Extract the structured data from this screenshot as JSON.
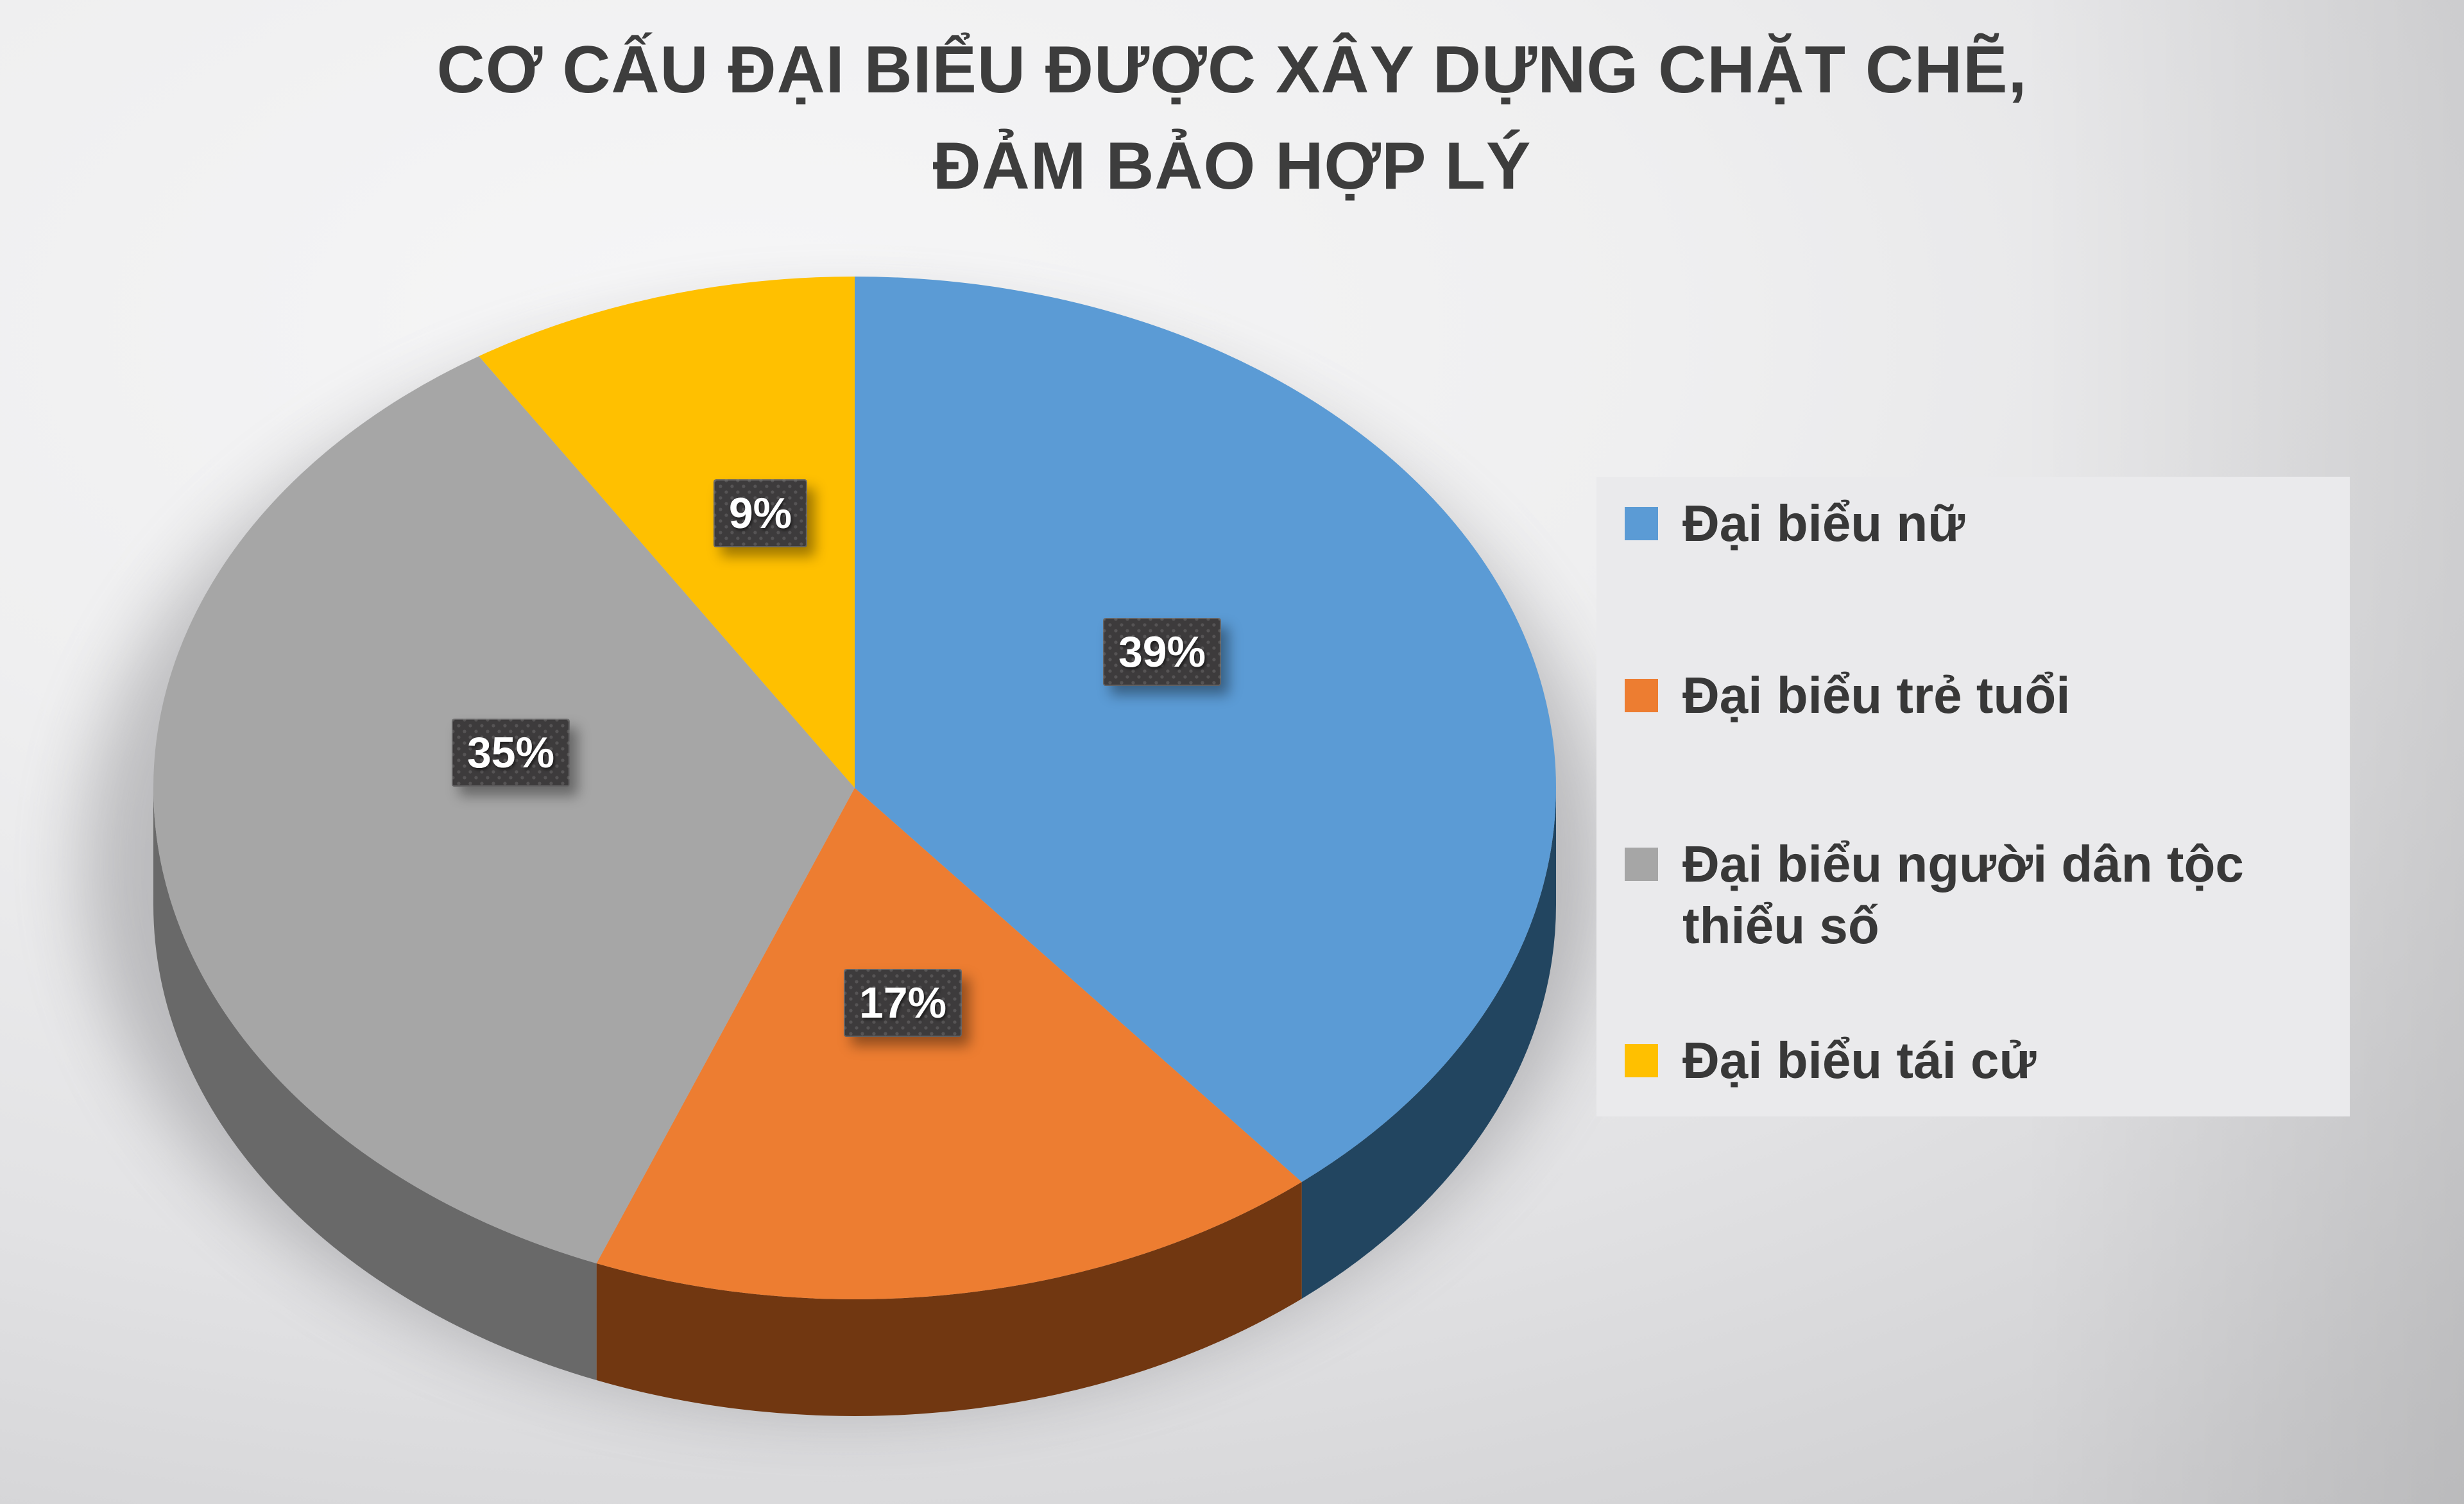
{
  "chart_data": {
    "type": "pie",
    "style": "3d-pie",
    "title": "CƠ CẤU ĐẠI BIỂU ĐƯỢC XÂY DỰNG CHẶT CHẼ, ĐẢM BẢO HỢP LÝ",
    "title_lines": [
      "CƠ CẤU ĐẠI BIỂU ĐƯỢC XÂY DỰNG CHẶT CHẼ,",
      "ĐẢM BẢO HỢP LÝ"
    ],
    "legend_position": "right",
    "unit": "%",
    "categories": [
      "Đại biểu nữ",
      "Đại biểu trẻ tuổi",
      "Đại biểu người dân tộc thiểu số",
      "Đại biểu tái cử"
    ],
    "values": [
      39,
      17,
      35,
      9
    ],
    "slices": [
      {
        "label": "Đại biểu nữ",
        "legend_lines": [
          "Đại biểu nữ"
        ],
        "value": 39,
        "data_label": "39%",
        "color": "#5B9BD5",
        "side_color": "#224560"
      },
      {
        "label": "Đại biểu trẻ tuổi",
        "legend_lines": [
          "Đại biểu trẻ tuổi"
        ],
        "value": 17,
        "data_label": "17%",
        "color": "#ED7D31",
        "side_color": "#713711"
      },
      {
        "label": "Đại biểu người dân tộc thiểu số",
        "legend_lines": [
          "Đại biểu người dân tộc",
          "thiểu số"
        ],
        "value": 35,
        "data_label": "35%",
        "color": "#A6A6A6",
        "side_color": "#696969"
      },
      {
        "label": "Đại biểu tái cử",
        "legend_lines": [
          "Đại biểu tái cử"
        ],
        "value": 9,
        "data_label": "9%",
        "color": "#FFC000",
        "side_color": "#8A6A00"
      }
    ],
    "data_label_style": {
      "text_color": "#FFFFFF",
      "box_color": "#3D3B3C"
    },
    "title_color": "#3D3D3D",
    "legend_text_color": "#383838",
    "start_angle_deg": 0,
    "direction": "clockwise"
  }
}
